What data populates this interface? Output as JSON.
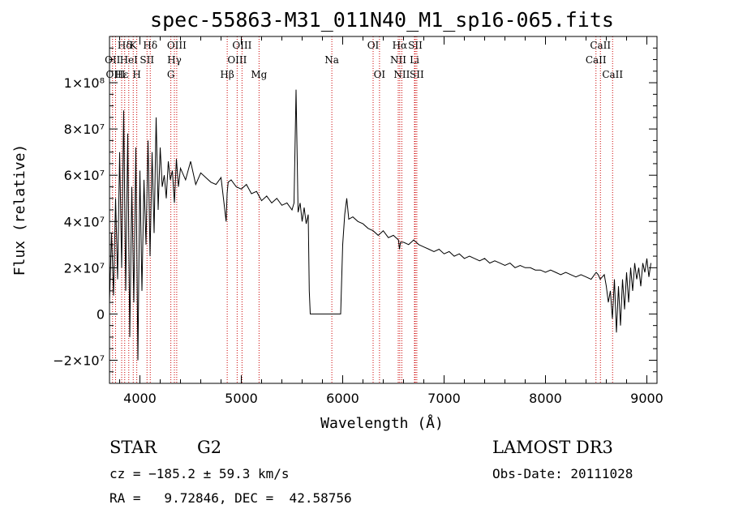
{
  "chart_data": {
    "type": "line",
    "title": "spec-55863-M31_011N40_M1_sp16-065.fits",
    "xlabel": "Wavelength (Å)",
    "ylabel": "Flux (relative)",
    "xlim": [
      3700,
      9100
    ],
    "ylim": [
      -30000000,
      120000000
    ],
    "x_ticks": [
      {
        "value": 4000,
        "label": "4000"
      },
      {
        "value": 5000,
        "label": "5000"
      },
      {
        "value": 6000,
        "label": "6000"
      },
      {
        "value": 7000,
        "label": "7000"
      },
      {
        "value": 8000,
        "label": "8000"
      },
      {
        "value": 9000,
        "label": "9000"
      }
    ],
    "y_ticks": [
      {
        "value": -20000000,
        "label": "−2×10⁷"
      },
      {
        "value": 0,
        "label": "0"
      },
      {
        "value": 20000000,
        "label": "2×10⁷"
      },
      {
        "value": 40000000,
        "label": "4×10⁷"
      },
      {
        "value": 60000000,
        "label": "6×10⁷"
      },
      {
        "value": 80000000,
        "label": "8×10⁷"
      },
      {
        "value": 100000000,
        "label": "1×10⁸"
      }
    ],
    "series": [
      {
        "name": "flux",
        "x": [
          3700,
          3720,
          3740,
          3760,
          3780,
          3800,
          3820,
          3840,
          3860,
          3880,
          3900,
          3920,
          3940,
          3960,
          3980,
          4000,
          4020,
          4040,
          4060,
          4080,
          4100,
          4120,
          4140,
          4160,
          4180,
          4200,
          4220,
          4240,
          4260,
          4280,
          4300,
          4320,
          4340,
          4360,
          4380,
          4400,
          4450,
          4500,
          4550,
          4600,
          4650,
          4700,
          4750,
          4800,
          4850,
          4860,
          4870,
          4900,
          4950,
          5000,
          5050,
          5100,
          5150,
          5200,
          5250,
          5300,
          5350,
          5400,
          5450,
          5500,
          5520,
          5540,
          5560,
          5580,
          5600,
          5620,
          5640,
          5660,
          5670,
          5680,
          5700,
          5800,
          5900,
          5950,
          5980,
          6000,
          6020,
          6040,
          6060,
          6100,
          6150,
          6200,
          6250,
          6300,
          6350,
          6400,
          6450,
          6500,
          6550,
          6560,
          6570,
          6600,
          6650,
          6700,
          6750,
          6800,
          6850,
          6900,
          6950,
          7000,
          7050,
          7100,
          7150,
          7200,
          7250,
          7300,
          7350,
          7400,
          7450,
          7500,
          7550,
          7600,
          7650,
          7700,
          7750,
          7800,
          7850,
          7900,
          7950,
          8000,
          8050,
          8100,
          8150,
          8200,
          8250,
          8300,
          8350,
          8400,
          8450,
          8500,
          8520,
          8540,
          8560,
          8580,
          8600,
          8620,
          8640,
          8660,
          8680,
          8700,
          8720,
          8740,
          8760,
          8780,
          8800,
          8820,
          8840,
          8860,
          8880,
          8900,
          8920,
          8940,
          8960,
          8980,
          9000,
          9020,
          9040
        ],
        "y": [
          5000000,
          35000000,
          8000000,
          50000000,
          15000000,
          70000000,
          20000000,
          88000000,
          10000000,
          78000000,
          -10000000,
          55000000,
          5000000,
          72000000,
          -20000000,
          62000000,
          10000000,
          58000000,
          30000000,
          75000000,
          25000000,
          70000000,
          35000000,
          85000000,
          45000000,
          72000000,
          55000000,
          60000000,
          50000000,
          66000000,
          58000000,
          62000000,
          48000000,
          67000000,
          55000000,
          63000000,
          58000000,
          66000000,
          56000000,
          61000000,
          59000000,
          57000000,
          56000000,
          59000000,
          40000000,
          52000000,
          57000000,
          58000000,
          55000000,
          54000000,
          56000000,
          52000000,
          53000000,
          49000000,
          51000000,
          48000000,
          50000000,
          47000000,
          48000000,
          45000000,
          48000000,
          97000000,
          44000000,
          48000000,
          40000000,
          46000000,
          39000000,
          43000000,
          10000000,
          0,
          0,
          0,
          0,
          0,
          0,
          30000000,
          43000000,
          50000000,
          41000000,
          42000000,
          40000000,
          39000000,
          37000000,
          36000000,
          34000000,
          36000000,
          33000000,
          34000000,
          32000000,
          28000000,
          31000000,
          31000000,
          30000000,
          32000000,
          30000000,
          29000000,
          28000000,
          27000000,
          28000000,
          26000000,
          27000000,
          25000000,
          26000000,
          24000000,
          25000000,
          24000000,
          23000000,
          24000000,
          22000000,
          23000000,
          22000000,
          21000000,
          22000000,
          20000000,
          21000000,
          20000000,
          20000000,
          19000000,
          19000000,
          18000000,
          19000000,
          18000000,
          17000000,
          18000000,
          17000000,
          16000000,
          17000000,
          16000000,
          15000000,
          18000000,
          17000000,
          15000000,
          16000000,
          17000000,
          12000000,
          5000000,
          10000000,
          -2000000,
          15000000,
          -8000000,
          12000000,
          -5000000,
          15000000,
          2000000,
          18000000,
          5000000,
          20000000,
          10000000,
          22000000,
          15000000,
          20000000,
          12000000,
          22000000,
          18000000,
          24000000,
          16000000,
          22000000
        ]
      }
    ],
    "emission_lines": [
      {
        "label": "Hδ",
        "x": 3850,
        "row": 0
      },
      {
        "label": "OII",
        "x": 3730,
        "row": 1
      },
      {
        "label": "OIII",
        "x": 3760,
        "row": 2
      },
      {
        "label": "K",
        "x": 3934,
        "row": 0
      },
      {
        "label": "HeI",
        "x": 3890,
        "row": 1
      },
      {
        "label": "H",
        "x": 3969,
        "row": 2
      },
      {
        "label": "Hε",
        "x": 3820,
        "row": 2
      },
      {
        "label": "SII",
        "x": 4070,
        "row": 1
      },
      {
        "label": "Hδ",
        "x": 4102,
        "row": 0
      },
      {
        "label": "OIII",
        "x": 4363,
        "row": 0
      },
      {
        "label": "Hγ",
        "x": 4340,
        "row": 1
      },
      {
        "label": "G",
        "x": 4305,
        "row": 2
      },
      {
        "label": "Hβ",
        "x": 4861,
        "row": 2
      },
      {
        "label": "OIII",
        "x": 5007,
        "row": 0
      },
      {
        "label": "OIII",
        "x": 4959,
        "row": 1
      },
      {
        "label": "Mg",
        "x": 5175,
        "row": 2
      },
      {
        "label": "Na",
        "x": 5893,
        "row": 1
      },
      {
        "label": "OI",
        "x": 6300,
        "row": 0
      },
      {
        "label": "OI",
        "x": 6363,
        "row": 2
      },
      {
        "label": "Hα",
        "x": 6563,
        "row": 0
      },
      {
        "label": "NII",
        "x": 6548,
        "row": 1
      },
      {
        "label": "NII",
        "x": 6583,
        "row": 2
      },
      {
        "label": "SII",
        "x": 6716,
        "row": 0
      },
      {
        "label": "Li",
        "x": 6708,
        "row": 1
      },
      {
        "label": "SII",
        "x": 6731,
        "row": 2
      },
      {
        "label": "CaII",
        "x": 8542,
        "row": 0
      },
      {
        "label": "CaII",
        "x": 8498,
        "row": 1
      },
      {
        "label": "CaII",
        "x": 8662,
        "row": 2
      }
    ],
    "line_color": "#000000",
    "marker_color": "#cc0000"
  },
  "info": {
    "object_type": "STAR",
    "subclass": "G2",
    "survey": "LAMOST DR3",
    "cz": "cz = −185.2 ± 59.3 km/s",
    "obs_date": "Obs-Date: 20111028",
    "coords": "RA =   9.72846, DEC =  42.58756"
  }
}
